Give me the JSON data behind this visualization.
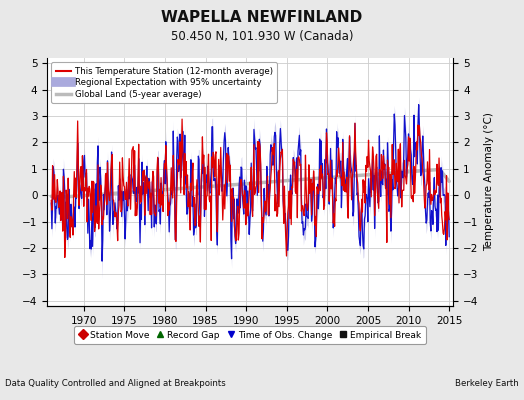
{
  "title": "WAPELLA NEWFINLAND",
  "subtitle": "50.450 N, 101.930 W (Canada)",
  "ylabel": "Temperature Anomaly (°C)",
  "xlabel_bottom_left": "Data Quality Controlled and Aligned at Breakpoints",
  "xlabel_bottom_right": "Berkeley Earth",
  "xlim": [
    1965.5,
    2015.5
  ],
  "ylim": [
    -4.2,
    5.2
  ],
  "yticks": [
    -4,
    -3,
    -2,
    -1,
    0,
    1,
    2,
    3,
    4,
    5
  ],
  "xticks": [
    1970,
    1975,
    1980,
    1985,
    1990,
    1995,
    2000,
    2005,
    2010,
    2015
  ],
  "bg_color": "#e8e8e8",
  "plot_bg_color": "#ffffff",
  "grid_color": "#cccccc",
  "red_line_color": "#dd0000",
  "blue_line_color": "#1111cc",
  "blue_fill_color": "#aaaadd",
  "gray_line_color": "#bbbbbb",
  "seed": 12345
}
